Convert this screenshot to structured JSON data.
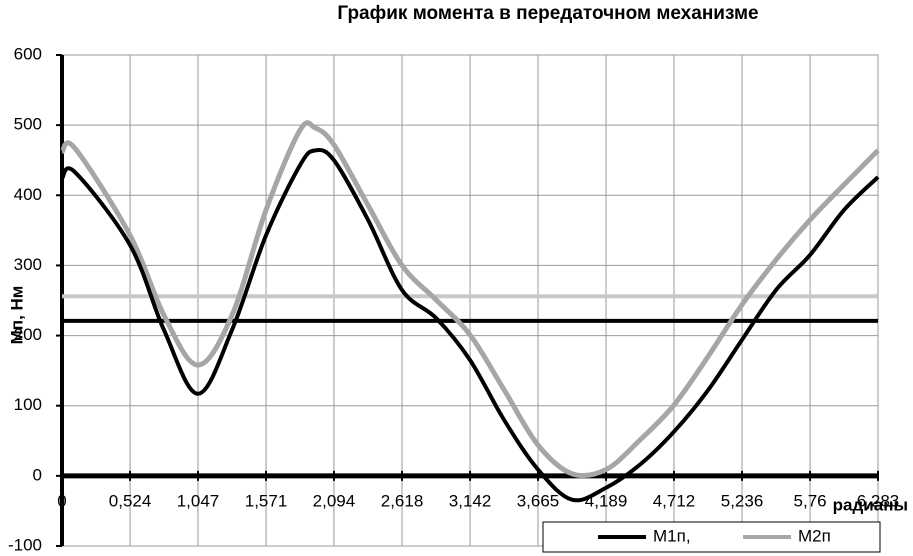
{
  "chart_data": {
    "type": "line",
    "title": "График момента в передаточном механизме",
    "ylabel": "Мп, Нм",
    "xlabel": "радианы",
    "x": [
      0,
      0.1,
      0.524,
      0.785,
      1.047,
      1.309,
      1.571,
      1.833,
      1.95,
      2.094,
      2.356,
      2.618,
      2.88,
      3.142,
      3.403,
      3.665,
      3.927,
      4.189,
      4.45,
      4.712,
      4.974,
      5.236,
      5.498,
      5.76,
      6.021,
      6.283
    ],
    "series": [
      {
        "name": "М1п,",
        "color": "#000000",
        "values": [
          424,
          433,
          329,
          208,
          117,
          208,
          343,
          443,
          464,
          450,
          365,
          265,
          225,
          165,
          80,
          9,
          -34,
          -17,
          16,
          63,
          122,
          194,
          265,
          315,
          379,
          426
        ]
      },
      {
        "name": "М2п",
        "color": "#a6a6a6",
        "values": [
          462,
          467,
          343,
          229,
          158,
          229,
          379,
          493,
          496,
          472,
          386,
          300,
          251,
          201,
          123,
          44,
          3,
          9,
          51,
          101,
          170,
          244,
          308,
          365,
          415,
          464
        ]
      }
    ],
    "reference_lines": [
      {
        "value": 221,
        "color": "#000000"
      },
      {
        "value": 256,
        "color": "#c8c8c8"
      }
    ],
    "xlim": [
      0,
      6.283
    ],
    "xticks": [
      0,
      {
        "value": 0.524,
        "label": "0,524"
      },
      {
        "value": 1.047,
        "label": "1,047"
      },
      {
        "value": 1.571,
        "label": "1,571"
      },
      {
        "value": 2.094,
        "label": "2,094"
      },
      {
        "value": 2.618,
        "label": "2,618"
      },
      {
        "value": 3.142,
        "label": "3,142"
      },
      {
        "value": 3.665,
        "label": "3,665"
      },
      {
        "value": 4.189,
        "label": "4,189"
      },
      {
        "value": 4.712,
        "label": "4,712"
      },
      {
        "value": 5.236,
        "label": "5,236"
      },
      {
        "value": 5.76,
        "label": "5,76"
      },
      {
        "value": 6.283,
        "label": "6,283"
      }
    ],
    "ylim": [
      -100,
      600
    ],
    "yticks": [
      -100,
      0,
      100,
      200,
      300,
      400,
      500,
      600
    ],
    "grid": true
  }
}
